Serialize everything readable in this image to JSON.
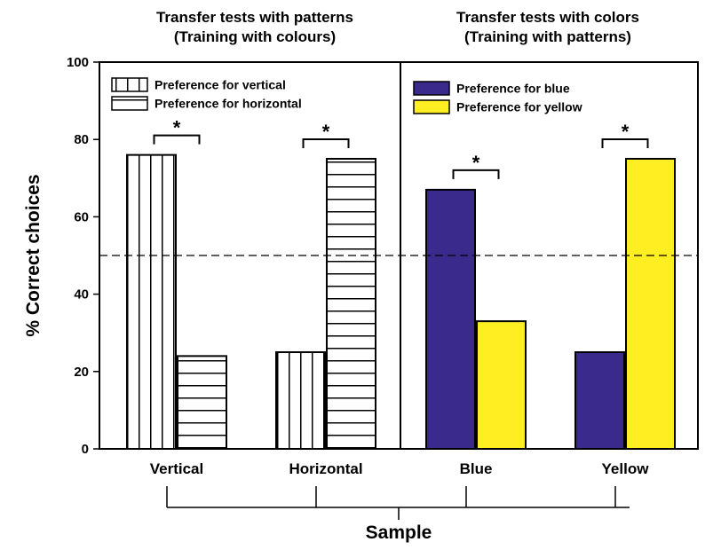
{
  "chart_data": {
    "type": "bar",
    "ylabel": "% Correct choices",
    "xlabel": "Sample",
    "ylim": [
      0,
      100
    ],
    "yticks": [
      0,
      20,
      40,
      60,
      80,
      100
    ],
    "reference_line": 50,
    "panels": [
      {
        "title_line1": "Transfer tests with patterns",
        "title_line2": "(Training with colours)",
        "categories": [
          "Vertical",
          "Horizontal"
        ],
        "series": [
          {
            "name": "Preference for vertical",
            "values": [
              76,
              25
            ],
            "fill": "vertical-stripes",
            "color": "#ffffff"
          },
          {
            "name": "Preference for horizontal",
            "values": [
              24,
              75
            ],
            "fill": "horizontal-stripes",
            "color": "#ffffff"
          }
        ],
        "significance": [
          "*",
          "*"
        ]
      },
      {
        "title_line1": "Transfer tests with colors",
        "title_line2": "(Training with patterns)",
        "categories": [
          "Blue",
          "Yellow"
        ],
        "series": [
          {
            "name": "Preference for blue",
            "values": [
              67,
              25
            ],
            "fill": "solid",
            "color": "#3a2a8c"
          },
          {
            "name": "Preference for yellow",
            "values": [
              33,
              75
            ],
            "fill": "solid",
            "color": "#ffee22"
          }
        ],
        "significance": [
          "*",
          "*"
        ]
      }
    ]
  }
}
